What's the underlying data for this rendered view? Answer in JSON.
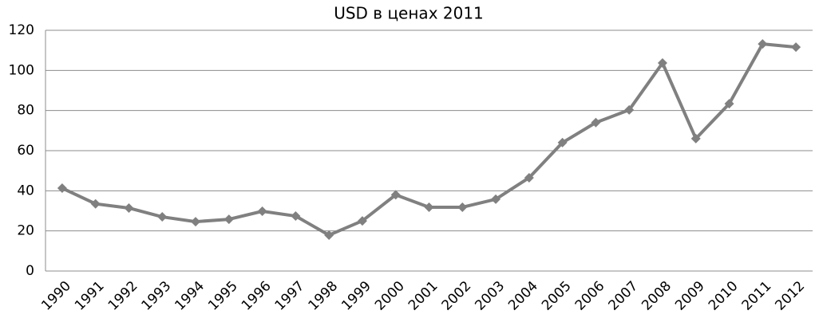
{
  "chart_data": {
    "type": "line",
    "title": "USD в ценах 2011",
    "categories": [
      "1990",
      "1991",
      "1992",
      "1993",
      "1994",
      "1995",
      "1996",
      "1997",
      "1998",
      "1999",
      "2000",
      "2001",
      "2002",
      "2003",
      "2004",
      "2005",
      "2006",
      "2007",
      "2008",
      "2009",
      "2010",
      "2011",
      "2012"
    ],
    "values": [
      41.3,
      33.5,
      31.4,
      27,
      24.6,
      25.8,
      29.8,
      27.4,
      17.9,
      25,
      38,
      31.8,
      31.8,
      35.8,
      46.5,
      64,
      74,
      80.3,
      103.7,
      66,
      83.4,
      113.2,
      111.6
    ],
    "color": "#808080",
    "ylim": [
      0,
      120
    ],
    "yticks": [
      0,
      20,
      40,
      60,
      80,
      100,
      120
    ],
    "grid": true
  }
}
